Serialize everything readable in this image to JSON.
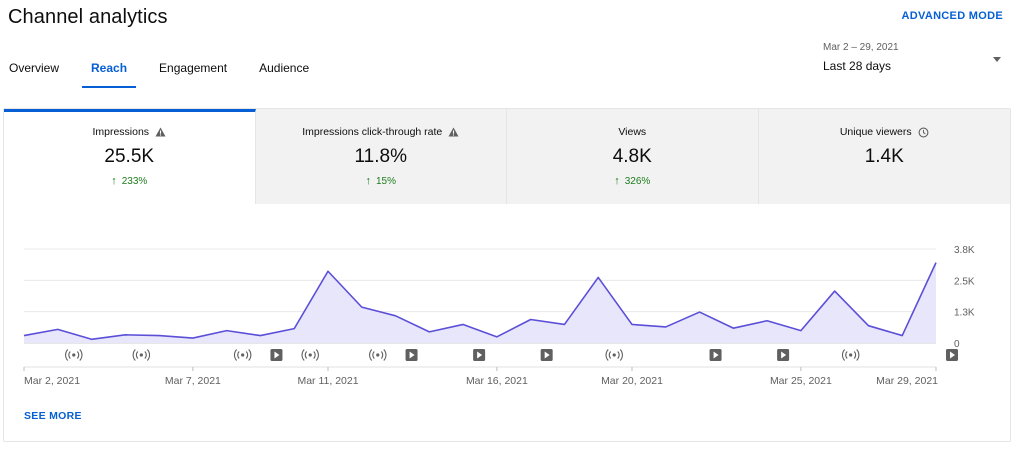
{
  "header": {
    "title": "Channel analytics",
    "advanced_mode": "ADVANCED MODE"
  },
  "tabs": [
    {
      "label": "Overview"
    },
    {
      "label": "Reach"
    },
    {
      "label": "Engagement"
    },
    {
      "label": "Audience"
    }
  ],
  "date_selector": {
    "range": "Mar 2 – 29, 2021",
    "label": "Last 28 days"
  },
  "metrics": [
    {
      "label": "Impressions",
      "value": "25.5K",
      "delta": "233%",
      "icon": "warning-icon"
    },
    {
      "label": "Impressions click-through rate",
      "value": "11.8%",
      "delta": "15%",
      "icon": "warning-icon"
    },
    {
      "label": "Views",
      "value": "4.8K",
      "delta": "326%"
    },
    {
      "label": "Unique viewers",
      "value": "1.4K",
      "icon": "clock-icon"
    }
  ],
  "chart_data": {
    "type": "area",
    "title": "Impressions",
    "y_ticks": [
      "3.8K",
      "2.5K",
      "1.3K",
      "0"
    ],
    "ylim": [
      0,
      3800
    ],
    "x_tick_labels": [
      {
        "day": 0,
        "label": "Mar 2, 2021"
      },
      {
        "day": 5,
        "label": "Mar 7, 2021"
      },
      {
        "day": 9,
        "label": "Mar 11, 2021"
      },
      {
        "day": 14,
        "label": "Mar 16, 2021"
      },
      {
        "day": 18,
        "label": "Mar 20, 2021"
      },
      {
        "day": 23,
        "label": "Mar 25, 2021"
      },
      {
        "day": 27,
        "label": "Mar 29, 2021"
      }
    ],
    "values": [
      300,
      550,
      150,
      330,
      300,
      200,
      500,
      300,
      580,
      2900,
      1450,
      1100,
      450,
      750,
      250,
      950,
      750,
      2650,
      750,
      650,
      1250,
      600,
      900,
      500,
      2100,
      700,
      300,
      3250
    ],
    "series_color": "#5b4fd8",
    "fill_color": "#e8e6fb",
    "markers": [
      {
        "day": 1,
        "type": "live"
      },
      {
        "day": 3,
        "type": "live"
      },
      {
        "day": 6,
        "type": "live"
      },
      {
        "day": 7,
        "type": "video"
      },
      {
        "day": 8,
        "type": "live"
      },
      {
        "day": 10,
        "type": "live"
      },
      {
        "day": 11,
        "type": "video"
      },
      {
        "day": 13,
        "type": "video"
      },
      {
        "day": 15,
        "type": "video"
      },
      {
        "day": 17,
        "type": "live"
      },
      {
        "day": 20,
        "type": "video"
      },
      {
        "day": 22,
        "type": "video"
      },
      {
        "day": 24,
        "type": "live"
      },
      {
        "day": 27,
        "type": "video"
      }
    ]
  },
  "see_more": "SEE MORE"
}
